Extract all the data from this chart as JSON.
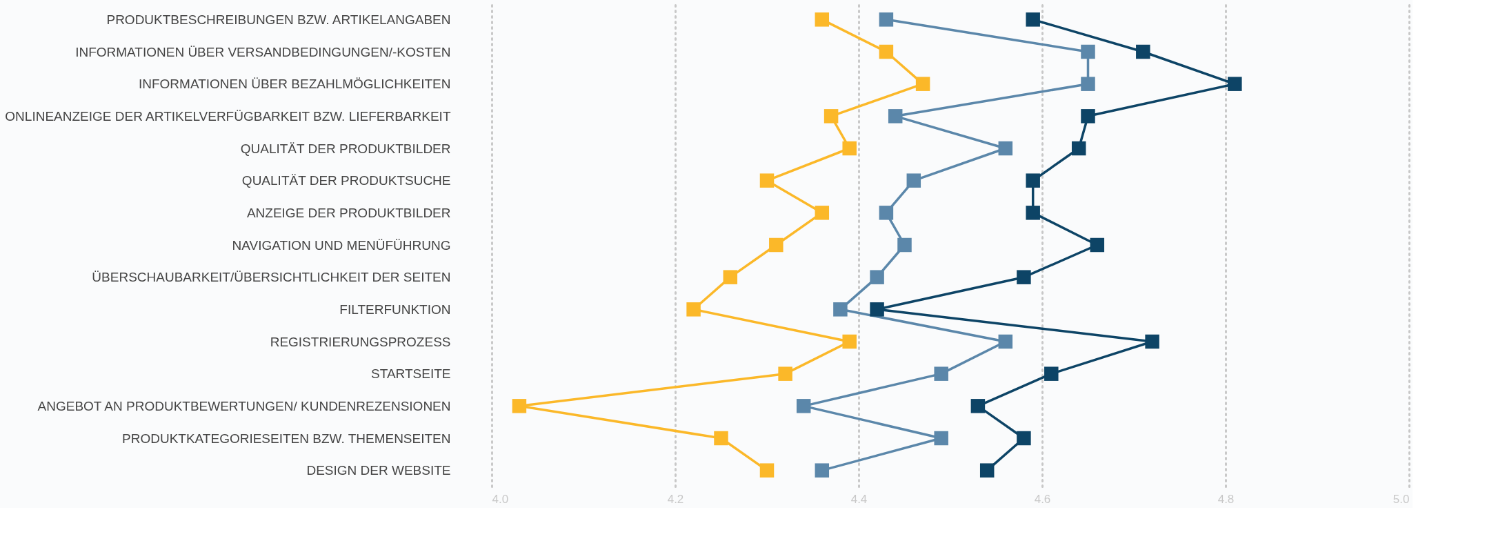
{
  "chart_data": {
    "type": "line",
    "orientation": "horizontal",
    "categories": [
      "PRODUKTBESCHREIBUNGEN BZW. ARTIKELANGABEN",
      "INFORMATIONEN ÜBER VERSANDBEDINGUNGEN/-KOSTEN",
      "INFORMATIONEN ÜBER BEZAHLMÖGLICHKEITEN",
      "ONLINEANZEIGE DER ARTIKELVERFÜGBARKEIT BZW. LIEFERBARKEIT",
      "QUALITÄT DER PRODUKTBILDER",
      "QUALITÄT DER PRODUKTSUCHE",
      "ANZEIGE DER PRODUKTBILDER",
      "NAVIGATION UND MENÜFÜHRUNG",
      "ÜBERSCHAUBARKEIT/ÜBERSICHTLICHKEIT DER SEITEN",
      "FILTERFUNKTION",
      "REGISTRIERUNGSPROZESS",
      "STARTSEITE",
      "ANGEBOT AN PRODUKTBEWERTUNGEN/ KUNDENREZENSIONEN",
      "PRODUKTKATEGORIESEITEN BZW. THEMENSEITEN",
      "DESIGN DER WEBSITE"
    ],
    "series": [
      {
        "color": "#fbb829",
        "values": [
          4.36,
          4.43,
          4.47,
          4.37,
          4.39,
          4.3,
          4.36,
          4.31,
          4.26,
          4.22,
          4.39,
          4.32,
          4.03,
          4.25,
          4.3
        ]
      },
      {
        "color": "#5b87aa",
        "values": [
          4.43,
          4.65,
          4.65,
          4.44,
          4.56,
          4.46,
          4.43,
          4.45,
          4.42,
          4.38,
          4.56,
          4.49,
          4.34,
          4.49,
          4.36
        ]
      },
      {
        "color": "#0d4466",
        "values": [
          4.59,
          4.71,
          4.81,
          4.65,
          4.64,
          4.59,
          4.59,
          4.66,
          4.58,
          4.42,
          4.72,
          4.61,
          4.53,
          4.58,
          4.54
        ]
      }
    ],
    "xlim": [
      4.0,
      5.0
    ],
    "xticks": [
      {
        "value": 4.0,
        "label": "4.0"
      },
      {
        "value": 4.2,
        "label": "4.2"
      },
      {
        "value": 4.4,
        "label": "4.4"
      },
      {
        "value": 4.6,
        "label": "4.6"
      },
      {
        "value": 4.8,
        "label": "4.8"
      },
      {
        "value": 5.0,
        "label": "5.0"
      }
    ],
    "grid": "x",
    "marker": "square",
    "line_style": "solid"
  }
}
